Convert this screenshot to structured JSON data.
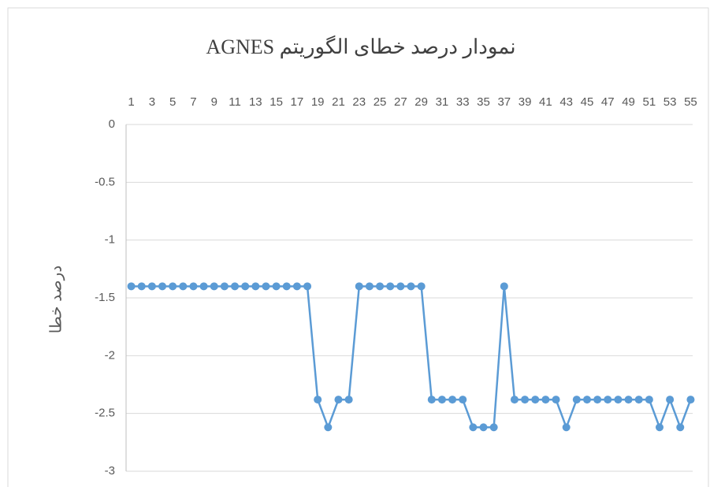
{
  "chart_data": {
    "type": "line",
    "title": "نمودار درصد خطای الگوریتم AGNES",
    "y_label": "درصد خطا",
    "categories": [
      1,
      null,
      3,
      null,
      5,
      null,
      7,
      null,
      9,
      null,
      11,
      null,
      13,
      null,
      15,
      null,
      17,
      null,
      19,
      null,
      21,
      null,
      23,
      null,
      25,
      null,
      27,
      null,
      29,
      null,
      31,
      null,
      33,
      null,
      35,
      null,
      37,
      null,
      39,
      null,
      41,
      null,
      43,
      null,
      45,
      null,
      47,
      null,
      49,
      null,
      51,
      null,
      53,
      null,
      55
    ],
    "values": [
      -1.4,
      -1.4,
      -1.4,
      -1.4,
      -1.4,
      -1.4,
      -1.4,
      -1.4,
      -1.4,
      -1.4,
      -1.4,
      -1.4,
      -1.4,
      -1.4,
      -1.4,
      -1.4,
      -1.4,
      -1.4,
      -2.38,
      -2.62,
      -2.38,
      -2.38,
      -1.4,
      -1.4,
      -1.4,
      -1.4,
      -1.4,
      -1.4,
      -1.4,
      -2.38,
      -2.38,
      -2.38,
      -2.38,
      -2.62,
      -2.62,
      -2.62,
      -1.4,
      -2.38,
      -2.38,
      -2.38,
      -2.38,
      -2.38,
      -2.62,
      -2.38,
      -2.38,
      -2.38,
      -2.38,
      -2.38,
      -2.38,
      -2.38,
      -2.38,
      -2.62,
      -2.38,
      -2.62,
      -2.38
    ],
    "color": "#5b9bd5",
    "ylim": [
      -3,
      0
    ],
    "yticks": [
      0,
      -0.5,
      -1,
      -1.5,
      -2,
      -2.5,
      -3
    ],
    "grid": true
  }
}
